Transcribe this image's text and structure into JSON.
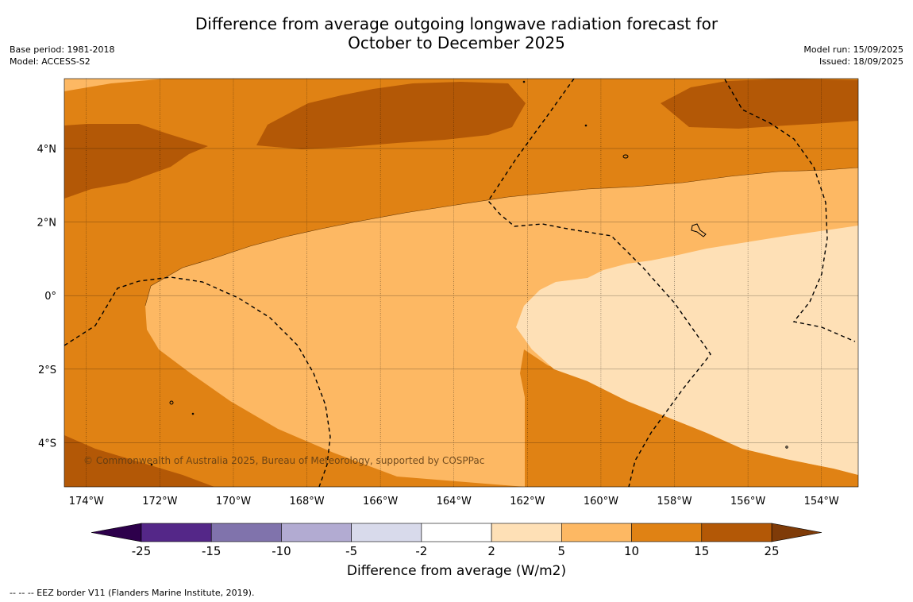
{
  "title": {
    "line1": "Difference from average outgoing longwave radiation forecast for",
    "line2": "October to December 2025"
  },
  "meta_left": {
    "base_period": "Base period: 1981-2018",
    "model": "Model: ACCESS-S2"
  },
  "meta_right": {
    "model_run": "Model run: 15/09/2025",
    "issued": "Issued: 18/09/2025"
  },
  "map": {
    "lon_range": [
      -174.6,
      -153.0
    ],
    "lat_range": [
      -5.2,
      5.9
    ],
    "lon_ticks": [
      {
        "value": -174,
        "label": "174°W"
      },
      {
        "value": -172,
        "label": "172°W"
      },
      {
        "value": -170,
        "label": "170°W"
      },
      {
        "value": -168,
        "label": "168°W"
      },
      {
        "value": -166,
        "label": "166°W"
      },
      {
        "value": -164,
        "label": "164°W"
      },
      {
        "value": -162,
        "label": "162°W"
      },
      {
        "value": -160,
        "label": "160°W"
      },
      {
        "value": -158,
        "label": "158°W"
      },
      {
        "value": -156,
        "label": "156°W"
      },
      {
        "value": -154,
        "label": "154°W"
      }
    ],
    "lat_ticks": [
      {
        "value": 4,
        "label": "4°N"
      },
      {
        "value": 2,
        "label": "2°N"
      },
      {
        "value": 0,
        "label": "0°"
      },
      {
        "value": -2,
        "label": "2°S"
      },
      {
        "value": -4,
        "label": "4°S"
      }
    ],
    "copyright": "© Commonwealth of Australia 2025, Bureau of Meteorology, supported by COSPPac"
  },
  "colorbar": {
    "title": "Difference from average (W/m2)",
    "bins": [
      {
        "low": -25,
        "high": -15,
        "color": "#542788"
      },
      {
        "low": -15,
        "high": -10,
        "color": "#8073ac"
      },
      {
        "low": -10,
        "high": -5,
        "color": "#b2abd2"
      },
      {
        "low": -5,
        "high": -2,
        "color": "#d8daeb"
      },
      {
        "low": -2,
        "high": 2,
        "color": "#ffffff"
      },
      {
        "low": 2,
        "high": 5,
        "color": "#fee0b6"
      },
      {
        "low": 5,
        "high": 10,
        "color": "#fdb863"
      },
      {
        "low": 10,
        "high": 15,
        "color": "#e08214"
      },
      {
        "low": 15,
        "high": 25,
        "color": "#b35806"
      }
    ],
    "under_color": "#2d004b",
    "over_color": "#7f3b08",
    "tick_labels": [
      "-25",
      "-15",
      "-10",
      "-5",
      "-2",
      "2",
      "5",
      "10",
      "15",
      "25"
    ]
  },
  "footer": "--  --  -- EEZ border V11 (Flanders Marine Institute, 2019)."
}
